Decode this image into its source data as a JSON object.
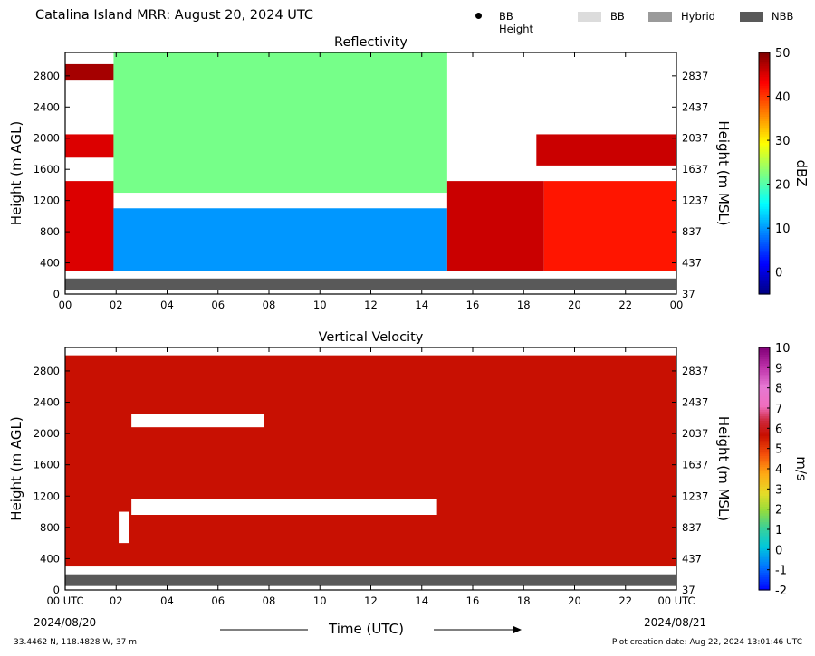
{
  "header": {
    "title": "Catalina Island MRR:  August 20, 2024 UTC",
    "legend": [
      {
        "kind": "dot",
        "label": "BB Height",
        "color": "#000000"
      },
      {
        "kind": "swatch",
        "label": "BB",
        "color": "#dcdcdc"
      },
      {
        "kind": "swatch",
        "label": "Hybrid",
        "color": "#9a9a9a"
      },
      {
        "kind": "swatch",
        "label": "NBB",
        "color": "#595959"
      }
    ]
  },
  "footer": {
    "coords": "33.4462 N, 118.4828 W, 37 m",
    "creation": "Plot creation date: Aug 22, 2024 13:01:46 UTC",
    "start_date": "2024/08/20",
    "end_date": "2024/08/21",
    "xlabel": "Time (UTC)"
  },
  "chart_data": [
    {
      "type": "heatmap",
      "title": "Reflectivity",
      "xlabel": "",
      "ylabel": "Height (m AGL)",
      "ylabel_right": "Height (m MSL)",
      "x_ticks": [
        "00",
        "02",
        "04",
        "06",
        "08",
        "10",
        "12",
        "14",
        "16",
        "18",
        "20",
        "22",
        "00"
      ],
      "x_range_hours": [
        0,
        24
      ],
      "y_ticks_left": [
        0,
        400,
        800,
        1200,
        1600,
        2000,
        2400,
        2800
      ],
      "y_ticks_right": [
        37,
        437,
        837,
        1237,
        1637,
        2037,
        2437,
        2837
      ],
      "ylim": [
        0,
        3100
      ],
      "colorbar": {
        "label": "dBZ",
        "min": -5,
        "max": 50,
        "ticks": [
          0,
          10,
          20,
          30,
          40,
          50
        ],
        "colormap": "jet"
      },
      "nbb_band_m": [
        50,
        200
      ],
      "rain_period_hours": [
        1.9,
        15.0
      ],
      "approx_values": [
        {
          "hours": [
            0,
            1.9
          ],
          "heights_m": [
            300,
            1450
          ],
          "dBZ": 45
        },
        {
          "hours": [
            0,
            1.9
          ],
          "heights_m": [
            1750,
            2050
          ],
          "dBZ": 45
        },
        {
          "hours": [
            0,
            1.9
          ],
          "heights_m": [
            2750,
            2950
          ],
          "dBZ": 48
        },
        {
          "hours": [
            1.9,
            15.0
          ],
          "heights_m": [
            300,
            1100
          ],
          "dBZ": 10
        },
        {
          "hours": [
            1.9,
            15.0
          ],
          "heights_m": [
            1300,
            3100
          ],
          "dBZ": 22
        },
        {
          "hours": [
            15.0,
            18.8
          ],
          "heights_m": [
            300,
            1450
          ],
          "dBZ": 46
        },
        {
          "hours": [
            18.8,
            24
          ],
          "heights_m": [
            300,
            1450
          ],
          "dBZ": 42
        },
        {
          "hours": [
            18.5,
            24
          ],
          "heights_m": [
            1650,
            2050
          ],
          "dBZ": 46
        }
      ]
    },
    {
      "type": "heatmap",
      "title": "Vertical Velocity",
      "xlabel": "Time (UTC)",
      "ylabel": "Height (m AGL)",
      "ylabel_right": "Height (m MSL)",
      "x_ticks": [
        "00 UTC",
        "02",
        "04",
        "06",
        "08",
        "10",
        "12",
        "14",
        "16",
        "18",
        "20",
        "22",
        "00 UTC"
      ],
      "x_range_hours": [
        0,
        24
      ],
      "y_ticks_left": [
        0,
        400,
        800,
        1200,
        1600,
        2000,
        2400,
        2800
      ],
      "y_ticks_right": [
        37,
        437,
        837,
        1237,
        1637,
        2037,
        2437,
        2837
      ],
      "ylim": [
        0,
        3100
      ],
      "colorbar": {
        "label": "m/s",
        "min": -2,
        "max": 10,
        "ticks": [
          -2,
          -1,
          0,
          1,
          2,
          3,
          4,
          5,
          6,
          7,
          8,
          9,
          10
        ],
        "colormap": "diverging"
      },
      "nbb_band_m": [
        50,
        200
      ],
      "approx_values": [
        {
          "hours": [
            0,
            24
          ],
          "heights_m": [
            300,
            3000
          ],
          "m_per_s": 5.7
        }
      ],
      "gaps": [
        {
          "hours": [
            2.6,
            7.8
          ],
          "heights_m": [
            2080,
            2250
          ]
        },
        {
          "hours": [
            2.6,
            14.6
          ],
          "heights_m": [
            960,
            1160
          ]
        },
        {
          "hours": [
            2.1,
            2.5
          ],
          "heights_m": [
            600,
            1000
          ]
        }
      ]
    }
  ]
}
